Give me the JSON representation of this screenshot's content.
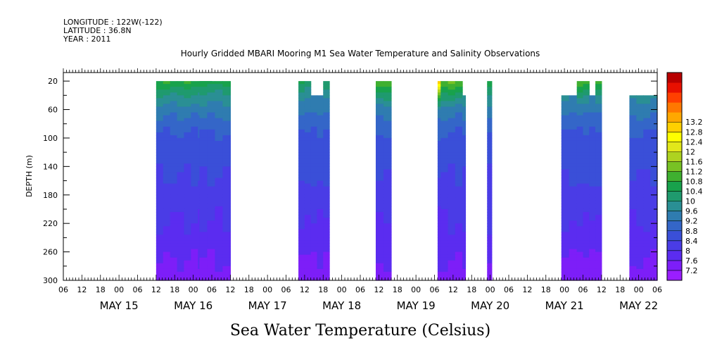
{
  "header": {
    "longitude": "LONGITUDE : 122W(-122)",
    "latitude": "LATITUDE : 36.8N",
    "year": "YEAR : 2011"
  },
  "chart_data": {
    "type": "heatmap",
    "title": "Hourly Gridded MBARI Mooring M1 Sea Water Temperature and Salinity Observations",
    "xlabel": "Sea Water Temperature (Celsius)",
    "ylabel": "DEPTH (m)",
    "x_unit": "hours since May 15 00:00, 2011",
    "xlim": [
      -18,
      174
    ],
    "ylim": [
      300,
      8
    ],
    "y_ticks": [
      20,
      60,
      100,
      140,
      180,
      220,
      260,
      300
    ],
    "x_tick_labels": [
      "06",
      "12",
      "18",
      "00",
      "06",
      "12",
      "18",
      "00",
      "06",
      "12",
      "18",
      "00",
      "06",
      "12",
      "18",
      "00",
      "06",
      "12",
      "18",
      "00",
      "06",
      "12",
      "18",
      "00",
      "06",
      "12",
      "18",
      "00",
      "06",
      "12",
      "18",
      "00",
      "06"
    ],
    "date_labels": [
      {
        "label": "MAY 15",
        "hour": 0
      },
      {
        "label": "MAY 16",
        "hour": 24
      },
      {
        "label": "MAY 17",
        "hour": 48
      },
      {
        "label": "MAY 18",
        "hour": 72
      },
      {
        "label": "MAY 19",
        "hour": 96
      },
      {
        "label": "MAY 20",
        "hour": 120
      },
      {
        "label": "MAY 21",
        "hour": 144
      },
      {
        "label": "MAY 22",
        "hour": 168
      }
    ],
    "colorbar": {
      "levels": [
        7.2,
        7.6,
        8,
        8.4,
        8.8,
        9.2,
        9.6,
        10,
        10.4,
        10.8,
        11.2,
        11.6,
        12,
        12.4,
        12.8,
        13.2
      ],
      "colors": [
        "#9a1eff",
        "#7d1ef8",
        "#5b2cf0",
        "#4a3ce6",
        "#3a4fd8",
        "#3466c8",
        "#2f7cb0",
        "#2a8f94",
        "#1f9a6e",
        "#18a24c",
        "#3fb030",
        "#78c224",
        "#aed320",
        "#e2e81a",
        "#ffff00",
        "#ffd000",
        "#ffa800",
        "#ff7800",
        "#ff4000",
        "#e81000",
        "#b80000"
      ]
    },
    "segments": [
      {
        "start": 12,
        "end": 30,
        "top_depth": 20,
        "surface_temp": 10.8
      },
      {
        "start": 26,
        "end": 36,
        "top_depth": 20,
        "surface_temp": 10.6
      },
      {
        "start": 58,
        "end": 62,
        "top_depth": 20,
        "surface_temp": 10.4
      },
      {
        "start": 62,
        "end": 66,
        "top_depth": 40,
        "surface_temp": 10.0
      },
      {
        "start": 66,
        "end": 68,
        "top_depth": 20,
        "surface_temp": 10.4
      },
      {
        "start": 83,
        "end": 88,
        "top_depth": 20,
        "surface_temp": 11.2
      },
      {
        "start": 103,
        "end": 104,
        "top_depth": 20,
        "surface_temp": 13.2
      },
      {
        "start": 104,
        "end": 111,
        "top_depth": 20,
        "surface_temp": 11.2
      },
      {
        "start": 111,
        "end": 112,
        "top_depth": 40,
        "surface_temp": 10.6
      },
      {
        "start": 119,
        "end": 120.5,
        "top_depth": 20,
        "surface_temp": 10.6
      },
      {
        "start": 143,
        "end": 148,
        "top_depth": 40,
        "surface_temp": 10.2
      },
      {
        "start": 148,
        "end": 152,
        "top_depth": 20,
        "surface_temp": 11.0
      },
      {
        "start": 152,
        "end": 154,
        "top_depth": 40,
        "surface_temp": 10.2
      },
      {
        "start": 154,
        "end": 156,
        "top_depth": 20,
        "surface_temp": 11.0
      },
      {
        "start": 165,
        "end": 180,
        "top_depth": 40,
        "surface_temp": 10.4
      }
    ],
    "profile": [
      {
        "depth": 20,
        "temp": 10.8
      },
      {
        "depth": 40,
        "temp": 10.0
      },
      {
        "depth": 60,
        "temp": 9.4
      },
      {
        "depth": 80,
        "temp": 9.0
      },
      {
        "depth": 100,
        "temp": 8.7
      },
      {
        "depth": 140,
        "temp": 8.5
      },
      {
        "depth": 180,
        "temp": 8.2
      },
      {
        "depth": 220,
        "temp": 8.0
      },
      {
        "depth": 260,
        "temp": 7.7
      },
      {
        "depth": 300,
        "temp": 7.4
      }
    ]
  }
}
